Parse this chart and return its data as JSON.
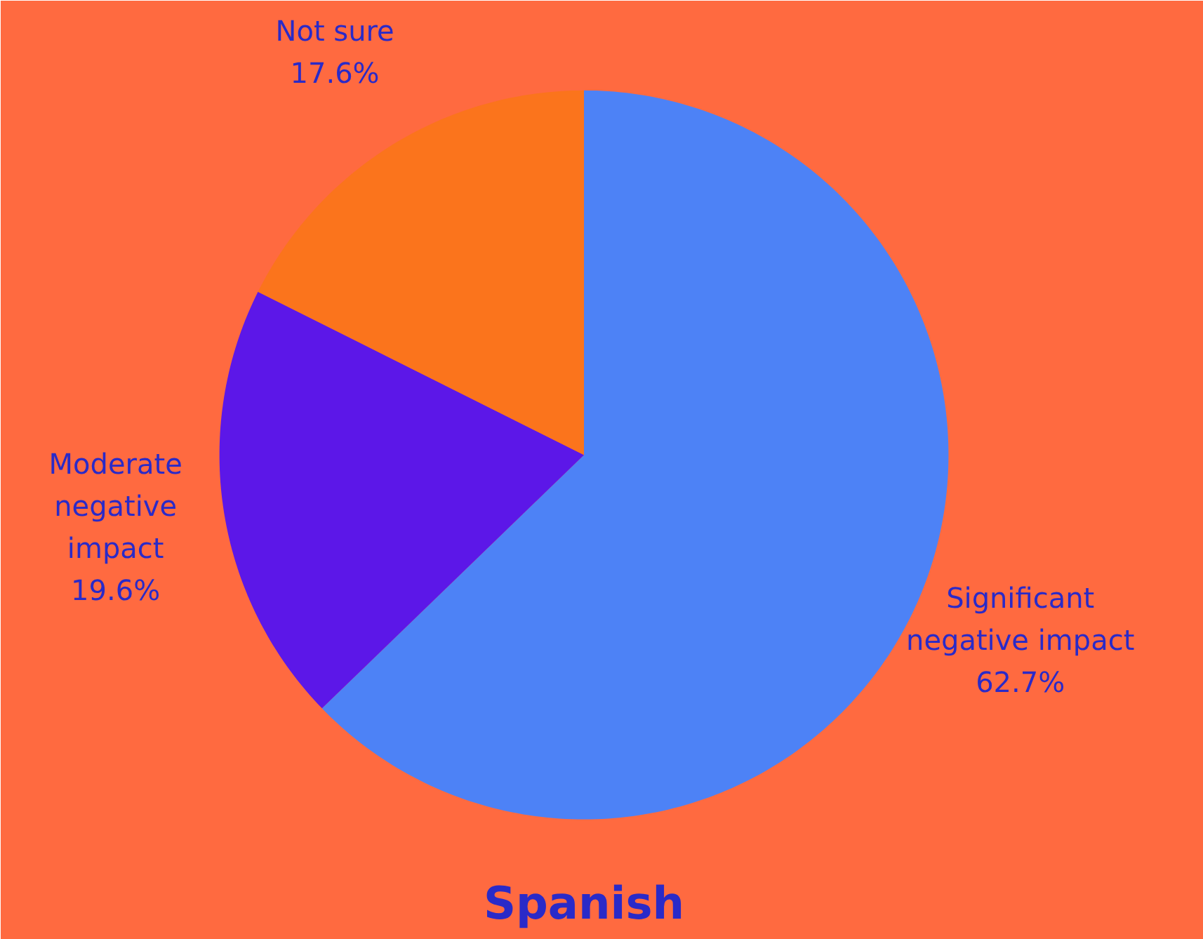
{
  "chart_data": {
    "type": "pie",
    "title": "Spanish",
    "categories": [
      "Significant negative impact",
      "Moderate negative impact",
      "Not sure"
    ],
    "values": [
      62.7,
      19.6,
      17.6
    ],
    "colors": [
      "#4d82f6",
      "#5c17e8",
      "#fb741c"
    ],
    "value_labels": [
      "62.7%",
      "19.6%",
      "17.6%"
    ]
  }
}
